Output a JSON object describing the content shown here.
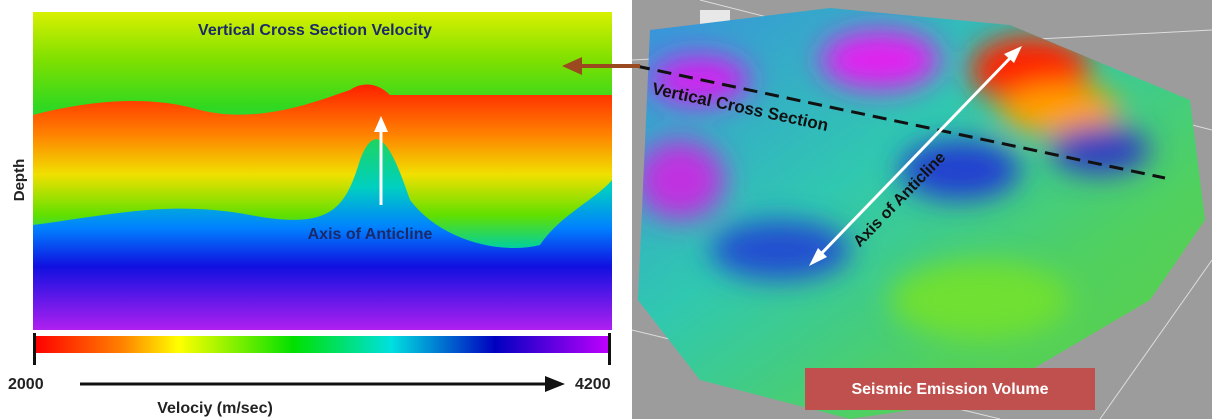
{
  "left_panel": {
    "title": "Vertical Cross Section Velocity",
    "y_label": "Depth",
    "annotation": "Axis of Anticline",
    "colorbar": {
      "min_label": "2000",
      "max_label": "4200",
      "label": "Velociy (m/sec)"
    }
  },
  "right_panel": {
    "section_label": "Vertical Cross Section",
    "axis_label": "Axis of Anticline",
    "caption": "Seismic Emission Volume"
  }
}
